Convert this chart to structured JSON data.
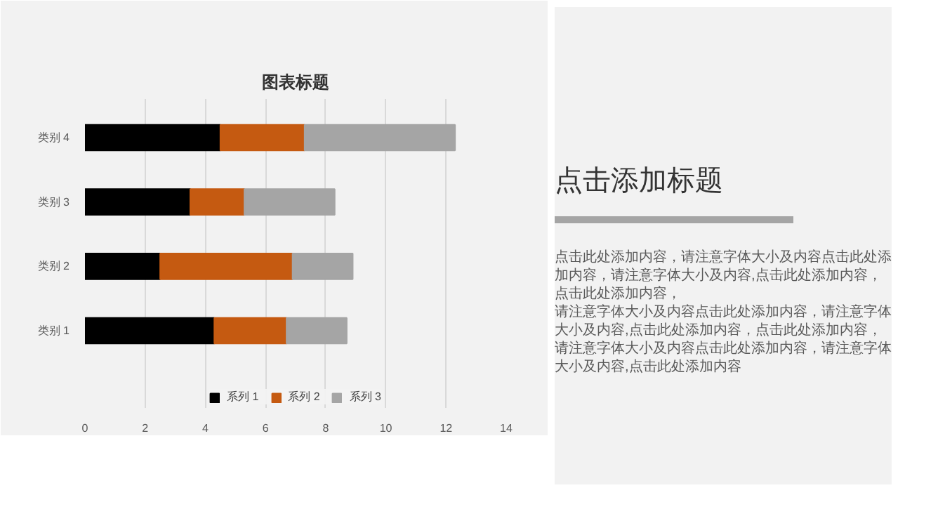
{
  "chart_data": [
    {
      "type": "bar",
      "title": "图表标题",
      "orientation": "horizontal",
      "stacked": true,
      "categories": [
        "类别 4",
        "类别 3",
        "类别 2",
        "类别 1"
      ],
      "series": [
        {
          "name": "系列 1",
          "color": "#000000",
          "values": [
            4.5,
            3.5,
            2.5,
            4.3
          ]
        },
        {
          "name": "系列 2",
          "color": "#c55a11",
          "values": [
            2.8,
            1.8,
            4.4,
            2.4
          ]
        },
        {
          "name": "系列 3",
          "color": "#a5a5a5",
          "values": [
            5,
            3,
            2,
            2
          ]
        }
      ],
      "xlim": [
        0,
        14
      ],
      "xticks": [
        0,
        2,
        4,
        6,
        8,
        10,
        12,
        14
      ],
      "grid": "x",
      "legend": "bottom"
    },
    {
      "type": "other",
      "title": "点击添加标题",
      "annotations": [
        "点击此处添加内容，请注意字体大小及内容点击此处添加内容，请注意字体大小及内容,点击此处添加内容，点击此处添加内容，",
        "请注意字体大小及内容点击此处添加内容，请注意字体大小及内容,点击此处添加内容，点击此处添加内容，",
        "请注意字体大小及内容点击此处添加内容，请注意字体大小及内容,点击此处添加内容"
      ]
    }
  ]
}
